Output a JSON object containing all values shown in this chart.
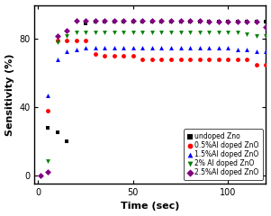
{
  "title": "",
  "xlabel": "Time (sec)",
  "ylabel": "Sensitivity (%)",
  "xlim": [
    -2,
    120
  ],
  "ylim": [
    -5,
    100
  ],
  "xticks": [
    0,
    50,
    100
  ],
  "yticks": [
    0,
    40,
    80
  ],
  "series": {
    "undoped": {
      "label": "undoped Zno",
      "color": "#000000",
      "marker": "s",
      "x": [
        5,
        10,
        15,
        25,
        30,
        35,
        40,
        45,
        50,
        55,
        60,
        65,
        70,
        75,
        80,
        85,
        90,
        95,
        100,
        105,
        110,
        115,
        120
      ],
      "y": [
        28,
        25,
        20,
        89,
        90,
        90,
        90,
        90,
        90,
        90,
        90,
        90,
        90,
        90,
        90,
        90,
        90,
        90,
        90,
        90,
        90,
        90,
        90
      ]
    },
    "half_percent": {
      "label": "0.5%Al doped ZnO",
      "color": "#ff0000",
      "marker": "o",
      "x": [
        5,
        10,
        15,
        20,
        25,
        30,
        35,
        40,
        45,
        50,
        55,
        60,
        65,
        70,
        75,
        80,
        85,
        90,
        95,
        100,
        105,
        110,
        115,
        120
      ],
      "y": [
        38,
        79,
        79,
        79,
        79,
        71,
        70,
        70,
        70,
        70,
        68,
        68,
        68,
        68,
        68,
        68,
        68,
        68,
        68,
        68,
        68,
        68,
        65,
        65
      ]
    },
    "one_half_percent": {
      "label": "1.5%Al doped ZnO",
      "color": "#0000ff",
      "marker": "^",
      "x": [
        5,
        10,
        15,
        20,
        25,
        30,
        35,
        40,
        45,
        50,
        55,
        60,
        65,
        70,
        75,
        80,
        85,
        90,
        95,
        100,
        105,
        110,
        115,
        120
      ],
      "y": [
        47,
        68,
        73,
        74,
        75,
        75,
        75,
        75,
        75,
        75,
        75,
        75,
        75,
        75,
        75,
        75,
        75,
        75,
        75,
        75,
        74,
        74,
        73,
        73
      ]
    },
    "two_percent": {
      "label": "2% Al doped ZnO",
      "color": "#008000",
      "marker": "v",
      "x": [
        5,
        10,
        15,
        20,
        25,
        30,
        35,
        40,
        45,
        50,
        55,
        60,
        65,
        70,
        75,
        80,
        85,
        90,
        95,
        100,
        105,
        110,
        115,
        120
      ],
      "y": [
        8,
        78,
        82,
        84,
        84,
        84,
        84,
        84,
        84,
        84,
        84,
        84,
        84,
        84,
        84,
        84,
        84,
        84,
        84,
        84,
        84,
        83,
        82,
        82
      ]
    },
    "two_half_percent": {
      "label": "2.5%Al doped ZnO",
      "color": "#800080",
      "marker": "D",
      "x": [
        1,
        5,
        10,
        15,
        20,
        25,
        30,
        35,
        40,
        45,
        50,
        55,
        60,
        65,
        70,
        75,
        80,
        85,
        90,
        95,
        100,
        105,
        110,
        115,
        120
      ],
      "y": [
        0,
        2,
        82,
        85,
        91,
        91,
        91,
        91,
        91,
        91,
        91,
        91,
        91,
        91,
        91,
        91,
        91,
        91,
        90,
        90,
        90,
        90,
        90,
        90,
        87
      ]
    }
  },
  "legend_fontsize": 5.5,
  "axis_fontsize": 8,
  "tick_fontsize": 7,
  "marker_size": 3.5,
  "bg_color": "#ffffff",
  "plot_bg_color": "#ffffff"
}
